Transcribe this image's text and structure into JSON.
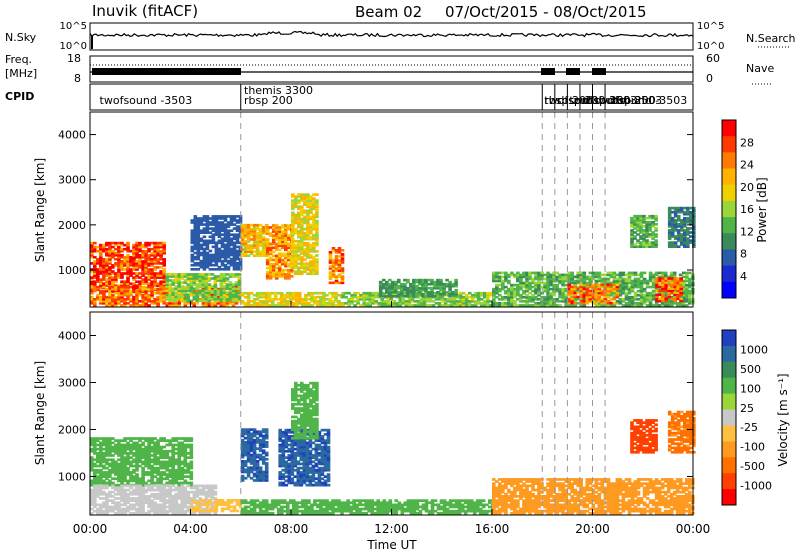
{
  "header": {
    "station": "Inuvik (fitACF)",
    "beam": "Beam 02",
    "date_range": "07/Oct/2015 - 08/Oct/2015"
  },
  "strip": {
    "nsky_label": "N.Sky",
    "nsearch_label": "N.Search",
    "nsky_ticks": [
      "10^5",
      "10^0"
    ],
    "nsearch_ticks": [
      "10^5",
      "10^0"
    ],
    "freq_label": "Freq.",
    "freq_unit": "[MHz]",
    "freq_ticks": [
      "18",
      "8"
    ],
    "nave_label": "Nave",
    "nave_ticks": [
      "60",
      "0"
    ],
    "cpid_label": "CPID",
    "cpid_entries": [
      {
        "label": "twofsound -3503",
        "t": 0.3
      },
      {
        "label": "themis 3300",
        "t": 6.05,
        "top": true
      },
      {
        "label": "rbsp 200",
        "t": 6.05
      },
      {
        "label": "twofsound -3503",
        "t": 18.0
      },
      {
        "label": "rbsp 200",
        "t": 18.0
      },
      {
        "label": "rbsp 200",
        "t": 18.5
      },
      {
        "label": "twofsound -3503",
        "t": 19.0
      },
      {
        "label": "rbsp 200",
        "t": 19.5
      },
      {
        "label": "twofsound -3503",
        "t": 20.0
      },
      {
        "label": "rbsp 200",
        "t": 20.5
      }
    ]
  },
  "colorbars": {
    "power": {
      "label": "Power [dB]",
      "ticks": [
        "28",
        "24",
        "20",
        "16",
        "12",
        "8",
        "4"
      ],
      "colors": [
        "#ff0000",
        "#ff3a00",
        "#ff7a00",
        "#ffb300",
        "#f0d000",
        "#9ad638",
        "#50b548",
        "#3a8a5a",
        "#2a5aa8",
        "#1a2ad0",
        "#0000ff"
      ]
    },
    "velocity": {
      "label": "Velocity [m s⁻¹]",
      "ticks": [
        "1000",
        "500",
        "100",
        "25",
        "-25",
        "-100",
        "-500",
        "-1000"
      ],
      "colors": [
        "#2040c0",
        "#2a6aa0",
        "#3a8a5a",
        "#50b548",
        "#9ad638",
        "#c8c8c8",
        "#ffc040",
        "#ff9a20",
        "#ff7000",
        "#ff4000",
        "#ff0000"
      ]
    }
  },
  "chart_data": [
    {
      "type": "heatmap",
      "name": "power",
      "ylabel": "Slant Range [km]",
      "xlabel": "Time UT",
      "xlim": [
        0,
        24
      ],
      "ylim": [
        180,
        4500
      ],
      "x_ticks": [
        "00:00",
        "04:00",
        "08:00",
        "12:00",
        "16:00",
        "20:00",
        "00:00"
      ],
      "y_ticks": [
        1000,
        2000,
        3000,
        4000
      ],
      "regions": [
        {
          "t": [
            0.0,
            3.0
          ],
          "r": [
            500,
            1600
          ],
          "level": 27
        },
        {
          "t": [
            0.0,
            6.0
          ],
          "r": [
            200,
            650
          ],
          "level": 24
        },
        {
          "t": [
            3.0,
            6.0
          ],
          "r": [
            300,
            900
          ],
          "level": 14
        },
        {
          "t": [
            4.0,
            6.0
          ],
          "r": [
            1000,
            2200
          ],
          "level": 6
        },
        {
          "t": [
            6.0,
            10.0
          ],
          "r": [
            200,
            500
          ],
          "level": 18
        },
        {
          "t": [
            6.0,
            7.0
          ],
          "r": [
            1300,
            2000
          ],
          "level": 20
        },
        {
          "t": [
            7.0,
            8.0
          ],
          "r": [
            800,
            2000
          ],
          "level": 22
        },
        {
          "t": [
            8.0,
            9.0
          ],
          "r": [
            900,
            2700
          ],
          "level": 18
        },
        {
          "t": [
            9.5,
            10.0
          ],
          "r": [
            700,
            1500
          ],
          "level": 24
        },
        {
          "t": [
            10.0,
            16.0
          ],
          "r": [
            200,
            500
          ],
          "level": 14
        },
        {
          "t": [
            11.5,
            14.5
          ],
          "r": [
            400,
            800
          ],
          "level": 10
        },
        {
          "t": [
            16.0,
            24.0
          ],
          "r": [
            200,
            950
          ],
          "level": 12
        },
        {
          "t": [
            19.0,
            21.0
          ],
          "r": [
            250,
            700
          ],
          "level": 24
        },
        {
          "t": [
            22.5,
            23.5
          ],
          "r": [
            300,
            800
          ],
          "level": 26
        },
        {
          "t": [
            21.5,
            22.5
          ],
          "r": [
            1500,
            2200
          ],
          "level": 12
        },
        {
          "t": [
            23.0,
            24.0
          ],
          "r": [
            1500,
            2400
          ],
          "level": 8
        }
      ],
      "dashed_times": [
        6.0,
        18.0,
        18.5,
        19.0,
        19.5,
        20.0,
        20.5
      ]
    },
    {
      "type": "heatmap",
      "name": "velocity",
      "ylabel": "Slant Range [km]",
      "xlabel": "Time UT",
      "xlim": [
        0,
        24
      ],
      "ylim": [
        180,
        4500
      ],
      "x_ticks": [
        "00:00",
        "04:00",
        "08:00",
        "12:00",
        "16:00",
        "20:00",
        "00:00"
      ],
      "y_ticks": [
        1000,
        2000,
        3000,
        4000
      ],
      "regions": [
        {
          "t": [
            0.0,
            4.0
          ],
          "r": [
            800,
            1800
          ],
          "level": 140
        },
        {
          "t": [
            0.0,
            5.0
          ],
          "r": [
            200,
            800
          ],
          "level": 0
        },
        {
          "t": [
            4.0,
            6.0
          ],
          "r": [
            250,
            500
          ],
          "level": -40
        },
        {
          "t": [
            6.0,
            7.0
          ],
          "r": [
            900,
            2000
          ],
          "level": 900
        },
        {
          "t": [
            7.5,
            9.5
          ],
          "r": [
            800,
            2000
          ],
          "level": 900
        },
        {
          "t": [
            8.0,
            9.0
          ],
          "r": [
            1800,
            3000
          ],
          "level": 200
        },
        {
          "t": [
            6.0,
            16.0
          ],
          "r": [
            200,
            500
          ],
          "level": 140
        },
        {
          "t": [
            16.0,
            24.0
          ],
          "r": [
            200,
            950
          ],
          "level": -200
        },
        {
          "t": [
            21.5,
            22.5
          ],
          "r": [
            1500,
            2200
          ],
          "level": -800
        },
        {
          "t": [
            23.0,
            24.0
          ],
          "r": [
            1500,
            2400
          ],
          "level": -300
        }
      ],
      "dashed_times": [
        6.0,
        18.0,
        18.5,
        19.0,
        19.5,
        20.0,
        20.5
      ]
    }
  ]
}
